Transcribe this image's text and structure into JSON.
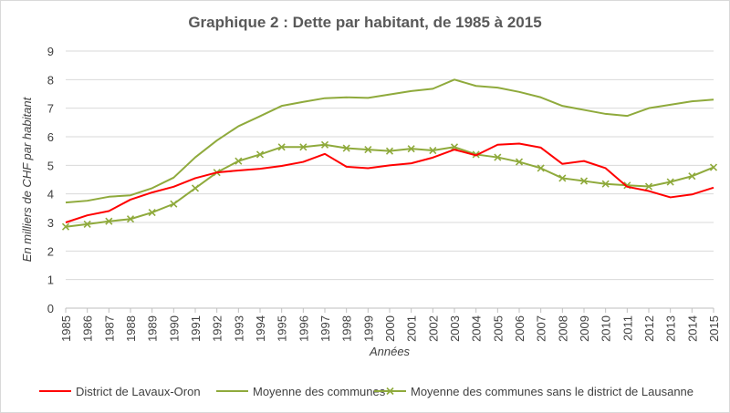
{
  "chart_data": {
    "type": "line",
    "title": "Graphique 2 : Dette par habitant, de 1985 à 2015",
    "xlabel": "Années",
    "ylabel": "En milliers de CHF par habitant",
    "ylim": [
      0,
      9
    ],
    "yticks": [
      "0",
      "1",
      "2",
      "3",
      "4",
      "5",
      "6",
      "7",
      "8",
      "9"
    ],
    "grid": true,
    "legend_position": "bottom",
    "categories": [
      "1985",
      "1986",
      "1987",
      "1988",
      "1989",
      "1990",
      "1991",
      "1992",
      "1993",
      "1994",
      "1995",
      "1996",
      "1997",
      "1998",
      "1999",
      "2000",
      "2001",
      "2002",
      "2003",
      "2004",
      "2005",
      "2006",
      "2007",
      "2008",
      "2009",
      "2010",
      "2011",
      "2012",
      "2013",
      "2014",
      "2015"
    ],
    "series": [
      {
        "name": "District de Lavaux-Oron",
        "color": "#ff0000",
        "marker": "none",
        "values": [
          3.0,
          3.25,
          3.4,
          3.8,
          4.05,
          4.25,
          4.55,
          4.75,
          4.82,
          4.88,
          4.98,
          5.12,
          5.4,
          4.95,
          4.9,
          5.0,
          5.07,
          5.27,
          5.55,
          5.35,
          5.72,
          5.76,
          5.62,
          5.05,
          5.15,
          4.9,
          4.25,
          4.1,
          3.88,
          3.98,
          4.22
        ]
      },
      {
        "name": "Moyenne des communes",
        "color": "#8faa3c",
        "marker": "none",
        "values": [
          3.7,
          3.76,
          3.9,
          3.95,
          4.2,
          4.57,
          5.28,
          5.87,
          6.37,
          6.72,
          7.08,
          7.22,
          7.35,
          7.38,
          7.36,
          7.48,
          7.6,
          7.68,
          8.0,
          7.78,
          7.72,
          7.57,
          7.38,
          7.08,
          6.94,
          6.8,
          6.73,
          7.0,
          7.12,
          7.24,
          7.3
        ]
      },
      {
        "name": "Moyenne des communes sans le district de Lausanne",
        "color": "#8faa3c",
        "marker": "x",
        "values": [
          2.85,
          2.94,
          3.04,
          3.12,
          3.35,
          3.65,
          4.2,
          4.75,
          5.15,
          5.38,
          5.64,
          5.64,
          5.72,
          5.6,
          5.55,
          5.5,
          5.58,
          5.52,
          5.64,
          5.38,
          5.28,
          5.12,
          4.9,
          4.55,
          4.45,
          4.35,
          4.3,
          4.26,
          4.42,
          4.62,
          4.93
        ]
      }
    ]
  }
}
